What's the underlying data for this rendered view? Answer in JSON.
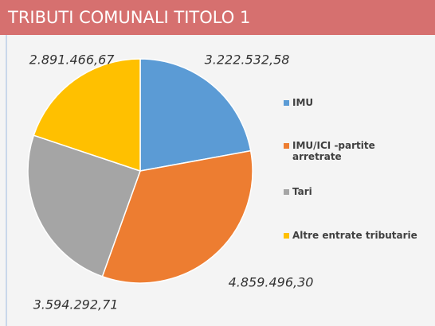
{
  "chart_data": {
    "type": "pie",
    "title": "TRIBUTI COMUNALI TITOLO 1",
    "categories": [
      "IMU",
      "IMU/ICI -partite arretrate",
      "Tari",
      "Altre entrate tributarie"
    ],
    "values": [
      3222532.58,
      4859496.3,
      3594292.71,
      2891466.67
    ],
    "value_labels": [
      "3.222.532,58",
      "4.859.496,30",
      "3.594.292,71",
      "2.891.466,67"
    ],
    "colors": [
      "#5b9bd5",
      "#ed7d31",
      "#a5a5a5",
      "#ffc000"
    ],
    "legend": "right"
  }
}
